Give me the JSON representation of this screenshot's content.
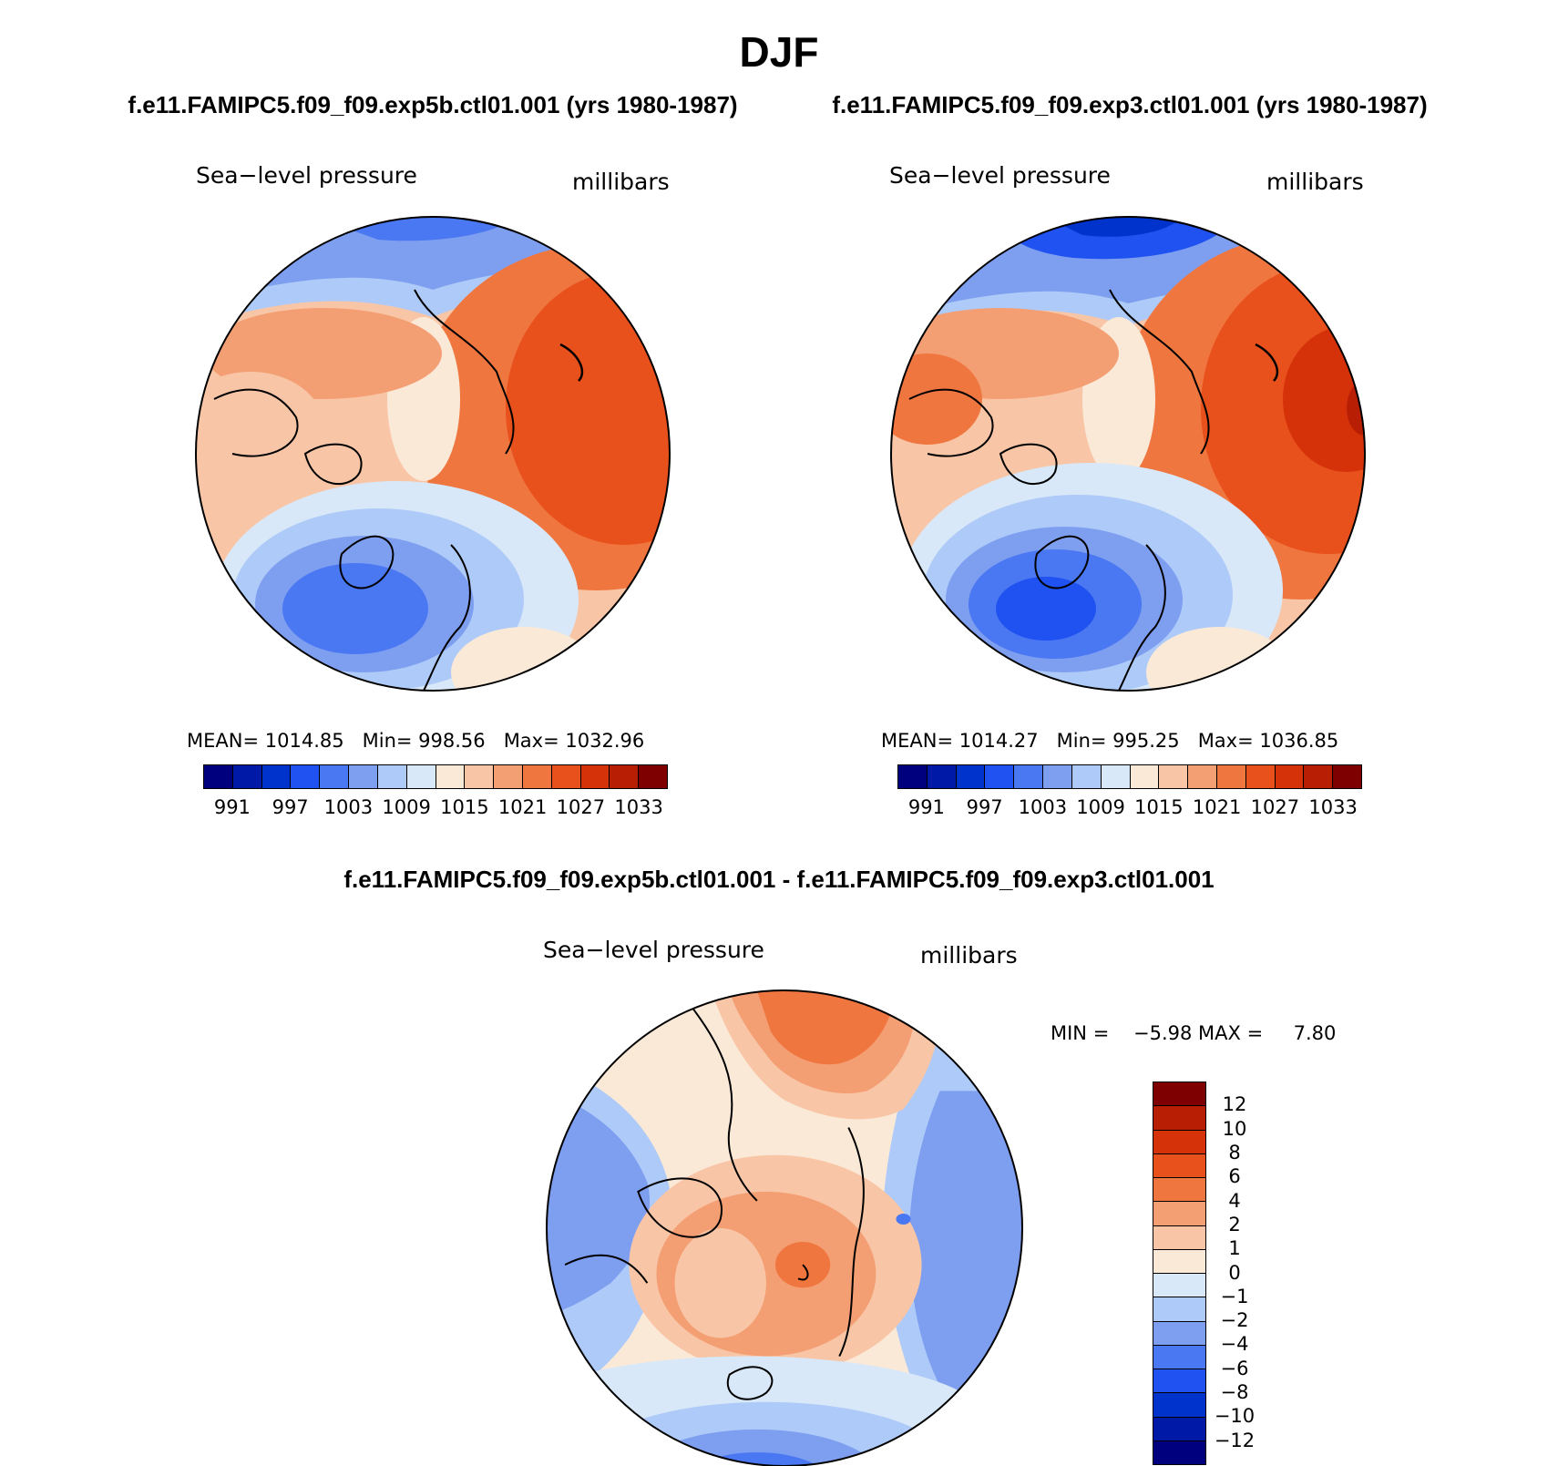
{
  "header": {
    "season": "DJF",
    "case_a": "f.e11.FAMIPC5.f09_f09.exp5b.ctl01.001 (yrs 1980-1987)",
    "case_b": "f.e11.FAMIPC5.f09_f09.exp3.ctl01.001 (yrs 1980-1987)",
    "diff_title": "f.e11.FAMIPC5.f09_f09.exp5b.ctl01.001 - f.e11.FAMIPC5.f09_f09.exp3.ctl01.001"
  },
  "panels": [
    {
      "variable": "Sea−level pressure",
      "units": "millibars",
      "stats": {
        "mean_label": "MEAN=",
        "mean": "1014.85",
        "min_label": "Min=",
        "min": "998.56",
        "max_label": "Max=",
        "max": "1032.96"
      }
    },
    {
      "variable": "Sea−level pressure",
      "units": "millibars",
      "stats": {
        "mean_label": "MEAN=",
        "mean": "1014.27",
        "min_label": "Min=",
        "min": "995.25",
        "max_label": "Max=",
        "max": "1036.85"
      }
    },
    {
      "variable": "Sea−level pressure",
      "units": "millibars",
      "stats": {
        "min_label": "MIN =",
        "min": "−5.98",
        "max_label": "MAX =",
        "max": "7.80"
      }
    }
  ],
  "abs_colorbar": {
    "colors": [
      "#00007e",
      "#0019a6",
      "#0033cc",
      "#1f52f0",
      "#4a77f2",
      "#7e9ef0",
      "#aecaf8",
      "#d8e8f8",
      "#fbe9d8",
      "#f8c6a6",
      "#f49e73",
      "#f07640",
      "#e8501c",
      "#d6320a",
      "#b81e04",
      "#7f0000"
    ],
    "ticks": [
      "991",
      "997",
      "1003",
      "1009",
      "1015",
      "1021",
      "1027",
      "1033"
    ]
  },
  "diff_colorbar": {
    "colors_top_to_bottom": [
      "#7f0000",
      "#b81e04",
      "#d6320a",
      "#e8501c",
      "#f07640",
      "#f49e73",
      "#f8c6a6",
      "#fbe9d8",
      "#d8e8f8",
      "#aecaf8",
      "#7e9ef0",
      "#4a77f2",
      "#1f52f0",
      "#0033cc",
      "#0019a6",
      "#00007e"
    ],
    "ticks": [
      "12",
      "10",
      "8",
      "6",
      "4",
      "2",
      "1",
      "0",
      "−1",
      "−2",
      "−4",
      "−6",
      "−8",
      "−10",
      "−12"
    ]
  }
}
